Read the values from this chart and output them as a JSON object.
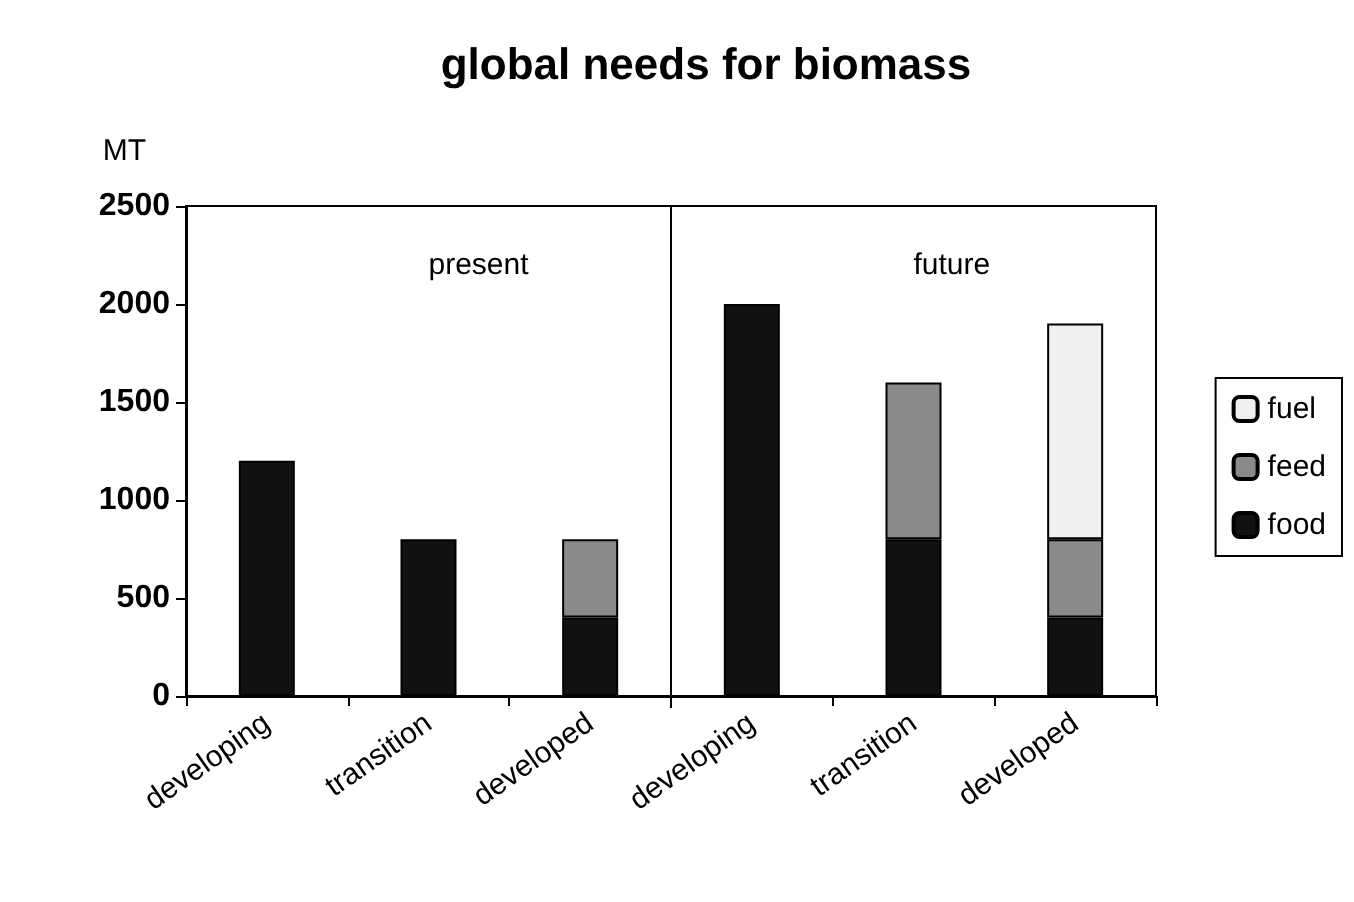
{
  "chart_data": {
    "type": "bar",
    "title": "global needs for biomass",
    "ylabel": "MT",
    "categories": [
      "developing",
      "transition",
      "developed",
      "developing",
      "transition",
      "developed"
    ],
    "stacked": true,
    "legend": "right",
    "grid": false,
    "ylim": [
      0,
      2500
    ],
    "yticks": [
      0,
      500,
      1000,
      1500,
      2000,
      2500
    ],
    "annotations": [
      "present",
      "future"
    ],
    "series": [
      {
        "name": "food",
        "color": "#111111",
        "values": [
          1200,
          800,
          400,
          2000,
          800,
          400
        ]
      },
      {
        "name": "feed",
        "color": "#8a8a8a",
        "values": [
          null,
          null,
          400,
          null,
          800,
          400
        ]
      },
      {
        "name": "fuel",
        "color": "#f0f0f0",
        "values": [
          null,
          null,
          null,
          null,
          null,
          1100
        ]
      }
    ]
  }
}
